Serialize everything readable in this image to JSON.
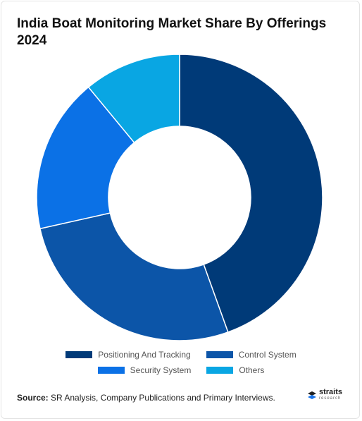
{
  "title": "India Boat Monitoring Market Share By Offerings 2024",
  "chart_data": {
    "type": "pie",
    "variant": "donut",
    "title": "India Boat Monitoring Market Share By Offerings 2024",
    "categories": [
      "Positioning And Tracking",
      "Control System",
      "Security System",
      "Others"
    ],
    "values": [
      44.5,
      27.0,
      17.5,
      11.0
    ],
    "colors": [
      "#003a78",
      "#0c55a8",
      "#0b71e6",
      "#09a6e3"
    ],
    "legend": "bottom"
  },
  "source": {
    "label": "Source:",
    "text": " SR Analysis, Company Publications and Primary Interviews."
  },
  "logo": {
    "name": "straits",
    "sub": "research"
  }
}
